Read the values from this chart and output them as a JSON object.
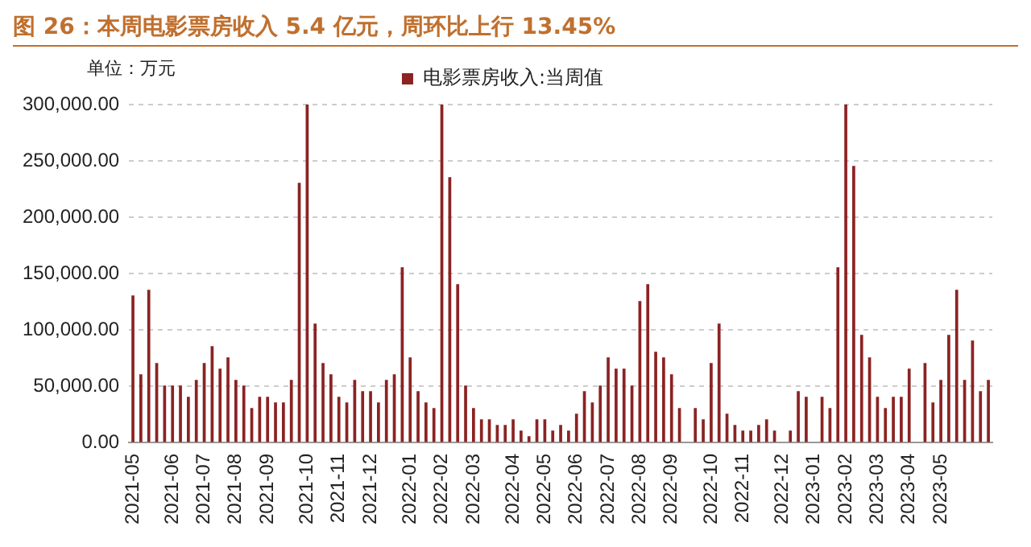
{
  "chart_data": {
    "type": "bar",
    "title": "图 26：本周电影票房收入 5.4 亿元，周环比上行 13.45%",
    "ylabel": "单位：万元",
    "categories": [
      "2021-05",
      null,
      null,
      null,
      null,
      "2021-06",
      null,
      null,
      null,
      "2021-07",
      null,
      null,
      null,
      "2021-08",
      null,
      null,
      null,
      "2021-09",
      null,
      null,
      null,
      null,
      "2021-10",
      null,
      null,
      null,
      "2021-11",
      null,
      null,
      null,
      "2021-12",
      null,
      null,
      null,
      null,
      "2022-01",
      null,
      null,
      null,
      "2022-02",
      null,
      null,
      null,
      "2022-03",
      null,
      null,
      null,
      null,
      "2022-04",
      null,
      null,
      null,
      "2022-05",
      null,
      null,
      null,
      "2022-06",
      null,
      null,
      null,
      "2022-07",
      null,
      null,
      null,
      "2022-08",
      null,
      null,
      null,
      "2022-09",
      null,
      null,
      null,
      null,
      "2022-10",
      null,
      null,
      null,
      "2022-11",
      null,
      null,
      null,
      null,
      "2022-12",
      null,
      null,
      null,
      "2023-01",
      null,
      null,
      null,
      "2023-02",
      null,
      null,
      null,
      "2023-03",
      null,
      null,
      null,
      "2023-04",
      null,
      null,
      null,
      "2023-05",
      null,
      null,
      null,
      null,
      null,
      null
    ],
    "series": [
      {
        "name": "电影票房收入:当周值",
        "color": "#8b2323",
        "values": [
          130000,
          60000,
          135000,
          70000,
          50000,
          50000,
          50000,
          40000,
          55000,
          70000,
          85000,
          65000,
          75000,
          55000,
          50000,
          30000,
          40000,
          40000,
          35000,
          35000,
          55000,
          230000,
          300000,
          105000,
          70000,
          60000,
          40000,
          35000,
          55000,
          45000,
          45000,
          35000,
          55000,
          60000,
          155000,
          75000,
          45000,
          35000,
          30000,
          300000,
          235000,
          140000,
          50000,
          30000,
          20000,
          20000,
          15000,
          15000,
          20000,
          10000,
          5000,
          20000,
          20000,
          10000,
          15000,
          10000,
          25000,
          45000,
          35000,
          50000,
          75000,
          65000,
          65000,
          50000,
          125000,
          140000,
          80000,
          75000,
          60000,
          30000,
          null,
          30000,
          20000,
          70000,
          105000,
          25000,
          15000,
          10000,
          10000,
          15000,
          20000,
          10000,
          null,
          10000,
          45000,
          40000,
          null,
          40000,
          30000,
          155000,
          300000,
          245000,
          95000,
          75000,
          40000,
          30000,
          40000,
          40000,
          65000,
          null,
          70000,
          35000,
          55000,
          95000,
          135000,
          55000,
          90000,
          45000,
          55000
        ]
      }
    ],
    "ylim": [
      0,
      300000
    ],
    "yticks": [
      {
        "value": 0,
        "label": "0.00"
      },
      {
        "value": 50000,
        "label": "50,000.00"
      },
      {
        "value": 100000,
        "label": "100,000.00"
      },
      {
        "value": 150000,
        "label": "150,000.00"
      },
      {
        "value": 200000,
        "label": "200,000.00"
      },
      {
        "value": 250000,
        "label": "250,000.00"
      },
      {
        "value": 300000,
        "label": "300,000.00"
      }
    ],
    "grid": "y",
    "legend": "top"
  }
}
